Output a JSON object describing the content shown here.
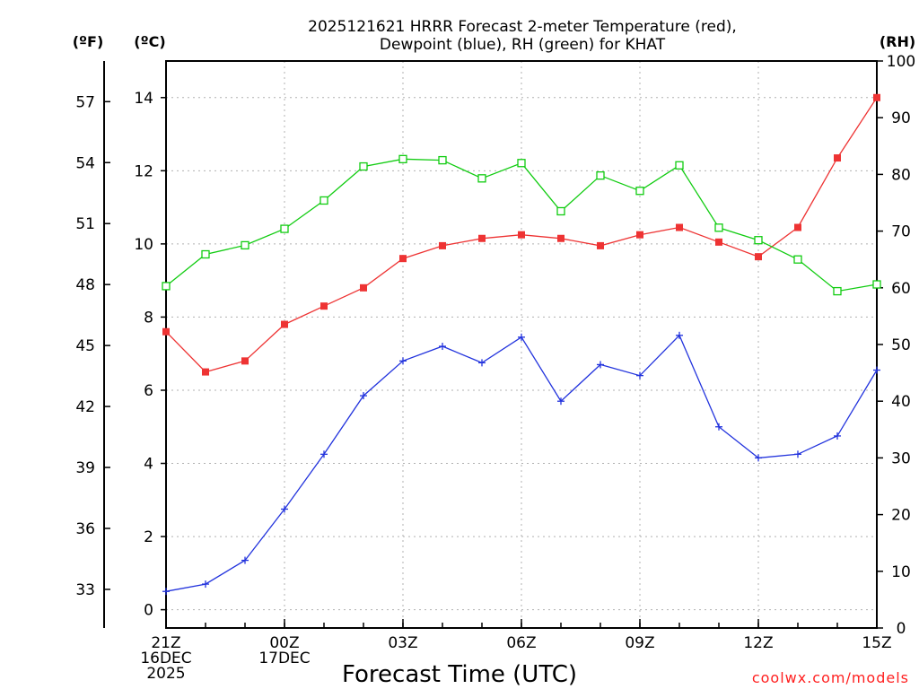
{
  "chart_data": {
    "type": "line",
    "title_line1": "2025121621 HRRR Forecast 2-meter Temperature (red),",
    "title_line2": "Dewpoint (blue), RH (green) for KHAT",
    "xlabel": "Forecast Time (UTC)",
    "credit": "coolwx.com/models",
    "units": {
      "fahrenheit": "(ºF)",
      "celsius": "(ºC)",
      "rh": "(RH)"
    },
    "x_hours": [
      0,
      1,
      2,
      3,
      4,
      5,
      6,
      7,
      8,
      9,
      10,
      11,
      12,
      13,
      14,
      15,
      16,
      17,
      18
    ],
    "x_ticks": [
      {
        "hour": 0,
        "lines": [
          "21Z",
          "16DEC",
          "2025"
        ]
      },
      {
        "hour": 3,
        "lines": [
          "00Z",
          "17DEC"
        ]
      },
      {
        "hour": 6,
        "lines": [
          "03Z"
        ]
      },
      {
        "hour": 9,
        "lines": [
          "06Z"
        ]
      },
      {
        "hour": 12,
        "lines": [
          "09Z"
        ]
      },
      {
        "hour": 15,
        "lines": [
          "12Z"
        ]
      },
      {
        "hour": 18,
        "lines": [
          "15Z"
        ]
      }
    ],
    "celsius_axis": {
      "min": -0.5,
      "max": 15,
      "ticks": [
        0,
        2,
        4,
        6,
        8,
        10,
        12,
        14
      ]
    },
    "fahrenheit_ticks": [
      33,
      36,
      39,
      42,
      45,
      48,
      51,
      54,
      57
    ],
    "rh_axis": {
      "min": 0,
      "max": 100,
      "ticks": [
        0,
        10,
        20,
        30,
        40,
        50,
        60,
        70,
        80,
        90,
        100
      ]
    },
    "colors": {
      "temperature": "#ee3333",
      "dewpoint": "#2233dd",
      "rh": "#11cc11",
      "grid": "#b0b0b0"
    },
    "series": [
      {
        "name": "Temperature (C)",
        "axis": "celsius",
        "marker": "filled-square",
        "values": [
          7.6,
          6.5,
          6.8,
          7.8,
          8.3,
          8.8,
          9.6,
          9.95,
          10.15,
          10.25,
          10.15,
          9.95,
          10.25,
          10.45,
          10.05,
          9.65,
          10.45,
          12.35,
          14.0
        ]
      },
      {
        "name": "Dewpoint (C)",
        "axis": "celsius",
        "marker": "plus",
        "values": [
          0.5,
          0.7,
          1.35,
          2.75,
          4.25,
          5.85,
          6.8,
          7.2,
          6.75,
          7.45,
          5.7,
          6.7,
          6.4,
          7.5,
          5.0,
          4.15,
          4.25,
          4.75,
          6.55
        ]
      },
      {
        "name": "RH (%)",
        "axis": "rh",
        "marker": "open-square",
        "values": [
          60.3,
          65.9,
          67.5,
          70.4,
          75.4,
          81.4,
          82.7,
          82.5,
          79.3,
          82.0,
          73.5,
          79.8,
          77.1,
          81.6,
          70.6,
          68.4,
          65.0,
          59.4,
          60.6
        ]
      }
    ]
  }
}
